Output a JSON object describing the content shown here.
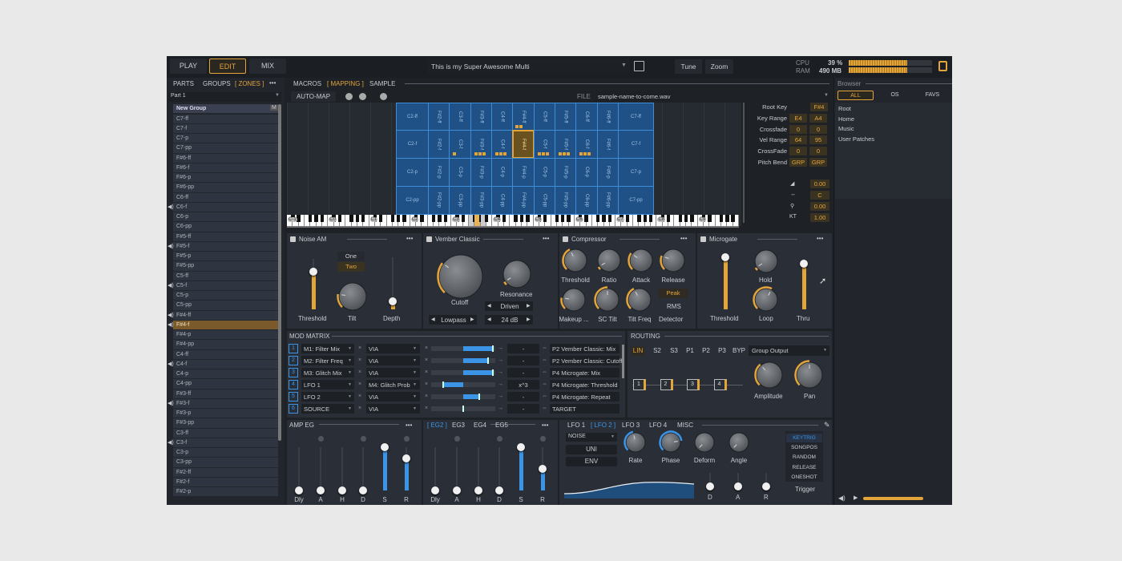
{
  "colors": {
    "accent": "#e3a43a",
    "blue": "#3b94e6",
    "zone": "#1f5186"
  },
  "topbar": {
    "tabs": [
      {
        "label": "PLAY"
      },
      {
        "label": "EDIT",
        "active": true
      },
      {
        "label": "MIX"
      }
    ],
    "preset": "This is my Super Awesome Multi",
    "save_icon": "floppy-disk-icon",
    "tune": "Tune",
    "zoom": "Zoom",
    "cpu_label": "CPU",
    "cpu_value": "39 %",
    "cpu_level": 0.7,
    "ram_label": "RAM",
    "ram_value": "490 MB",
    "ram_level": 0.7
  },
  "left": {
    "tabs": [
      "PARTS",
      "GROUPS",
      "[ ZONES ]"
    ],
    "more": "•••",
    "part": "Part 1",
    "group": "New Group",
    "group_badge": "M",
    "zones": [
      {
        "name": "C7-ff"
      },
      {
        "name": "C7-f"
      },
      {
        "name": "C7-p"
      },
      {
        "name": "C7-pp"
      },
      {
        "name": "F#6-ff"
      },
      {
        "name": "F#6-f"
      },
      {
        "name": "F#6-p"
      },
      {
        "name": "F#6-pp"
      },
      {
        "name": "C6-ff"
      },
      {
        "name": "C6-f",
        "speaker": true
      },
      {
        "name": "C6-p"
      },
      {
        "name": "C6-pp"
      },
      {
        "name": "F#5-ff"
      },
      {
        "name": "F#5-f",
        "speaker": true
      },
      {
        "name": "F#5-p"
      },
      {
        "name": "F#5-pp"
      },
      {
        "name": "C5-ff"
      },
      {
        "name": "C5-f",
        "speaker": true
      },
      {
        "name": "C5-p"
      },
      {
        "name": "C5-pp"
      },
      {
        "name": "F#4-ff",
        "speaker": true
      },
      {
        "name": "F#4-f",
        "speaker": true,
        "selected": true
      },
      {
        "name": "F#4-p"
      },
      {
        "name": "F#4-pp"
      },
      {
        "name": "C4-ff"
      },
      {
        "name": "C4-f",
        "speaker": true
      },
      {
        "name": "C4-p"
      },
      {
        "name": "C4-pp"
      },
      {
        "name": "F#3-ff"
      },
      {
        "name": "F#3-f",
        "speaker": true
      },
      {
        "name": "F#3-p"
      },
      {
        "name": "F#3-pp"
      },
      {
        "name": "C3-ff"
      },
      {
        "name": "C3-f",
        "speaker": true
      },
      {
        "name": "C3-p"
      },
      {
        "name": "C3-pp"
      },
      {
        "name": "F#2-ff"
      },
      {
        "name": "F#2-f"
      },
      {
        "name": "F#2-p"
      }
    ]
  },
  "editor": {
    "tabs": [
      "MACROS",
      "[ MAPPING ]",
      "SAMPLE"
    ],
    "automap": "AUTO-MAP",
    "file_label": "FILE",
    "file": "sample-name-to-come.wav"
  },
  "mapping": {
    "columns": [
      "C2",
      "F#2",
      "C3",
      "F#3",
      "C4",
      "F#4",
      "C5",
      "F#5",
      "C6",
      "F#6",
      "C7"
    ],
    "rows": [
      "ff",
      "f",
      "p",
      "pp"
    ],
    "selected": "F#4-f",
    "octaves": [
      "C-1",
      "C0",
      "C1",
      "C2",
      "C3",
      "C4",
      "C5",
      "C6",
      "C7",
      "C8",
      "C9"
    ]
  },
  "zone_props": {
    "rows": [
      {
        "label": "Root Key",
        "values": [
          "F#4"
        ]
      },
      {
        "label": "Key Range",
        "values": [
          "E4",
          "A4"
        ]
      },
      {
        "label": "Crossfade",
        "values": [
          "0",
          "0"
        ]
      },
      {
        "label": "Vel Range",
        "values": [
          "64",
          "95"
        ]
      },
      {
        "label": "CrossFade",
        "values": [
          "0",
          "0"
        ]
      },
      {
        "label": "Pitch Bend",
        "values": [
          "GRP",
          "GRP"
        ]
      }
    ],
    "params": [
      {
        "icon": "volume-ramp-icon",
        "value": "0.00"
      },
      {
        "icon": "pan-arrows-icon",
        "value": "C"
      },
      {
        "icon": "tuning-fork-icon",
        "value": "0.00"
      },
      {
        "label": "KT",
        "value": "1.00"
      }
    ]
  },
  "browser": {
    "title": "Browser",
    "tabs": [
      "ALL",
      "OS",
      "FAVS"
    ],
    "items": [
      "Root",
      "Home",
      "Music",
      "User Patches"
    ],
    "preview_level": 1.0
  },
  "fx": [
    {
      "title": "Noise AM",
      "options": [
        "One",
        "Two"
      ],
      "selected_option": "Two",
      "controls": [
        {
          "label": "Threshold",
          "value": 0.75
        },
        {
          "label": "Tilt",
          "value": 0.2
        },
        {
          "label": "Depth",
          "value": 0.15
        }
      ]
    },
    {
      "title": "Vember Classic",
      "controls": [
        {
          "label": "Cutoff",
          "value": 0.3
        },
        {
          "label": "Resonance",
          "value": 0.05
        }
      ],
      "filter_type": "Lowpass",
      "drive": "Driven",
      "slope": "24 dB"
    },
    {
      "title": "Compressor",
      "controls": [
        {
          "label": "Threshold",
          "value": 0.4
        },
        {
          "label": "Ratio",
          "value": 0.05
        },
        {
          "label": "Attack",
          "value": 0.3
        },
        {
          "label": "Release",
          "value": 0.25
        },
        {
          "label": "Makeup ...",
          "value": 0.2
        },
        {
          "label": "SC Tilt",
          "value": 0.5
        },
        {
          "label": "Tilt Freq",
          "value": 0.4
        }
      ],
      "detector_options": [
        "Peak",
        "RMS"
      ],
      "detector_selected": "Peak",
      "detector_label": "Detector"
    },
    {
      "title": "Microgate",
      "controls": [
        {
          "label": "Threshold",
          "value": 0.95
        },
        {
          "label": "Hold",
          "value": 0.05
        },
        {
          "label": "Loop",
          "value": 0.6
        },
        {
          "label": "Thru",
          "value": 0.9
        }
      ]
    }
  ],
  "mod_matrix": {
    "title": "MOD MATRIX",
    "rows": [
      {
        "index": "1",
        "source": "M1: Filter Mix",
        "via": "VIA",
        "depth": 0.93,
        "curve": "-",
        "target": "P2 Vember Classic: Mix"
      },
      {
        "index": "2",
        "source": "M2: Filter Freq",
        "via": "VIA",
        "depth": 0.78,
        "curve": "-",
        "target": "P2 Vember Classic: Cutoff"
      },
      {
        "index": "3",
        "source": "M3: Glitch Mix",
        "via": "VIA",
        "depth": 0.93,
        "curve": "-",
        "target": "P4 Microgate: Mix"
      },
      {
        "index": "4",
        "source": "LFO 1",
        "via": "M4: Glitch Prob",
        "depth": -0.63,
        "curve": "x^3",
        "target": "P4 Microgate: Threshold"
      },
      {
        "index": "5",
        "source": "LFO 2",
        "via": "VIA",
        "depth": 0.5,
        "curve": "-",
        "target": "P4 Microgate: Repeat"
      },
      {
        "index": "6",
        "source": "SOURCE",
        "via": "VIA",
        "depth": 0,
        "curve": "-",
        "target": "TARGET"
      }
    ]
  },
  "routing": {
    "title": "ROUTING",
    "modes": [
      "LIN",
      "S2",
      "S3",
      "P1",
      "P2",
      "P3",
      "BYP"
    ],
    "active_mode": "LIN",
    "output": "Group Output",
    "slots": [
      "1",
      "2",
      "3",
      "4"
    ],
    "controls": [
      {
        "label": "Amplitude",
        "value": 0.35
      },
      {
        "label": "Pan",
        "value": 0.5
      }
    ]
  },
  "amp_eg": {
    "title": "AMP EG",
    "more": "•••",
    "sliders": [
      {
        "label": "Dly",
        "value": 0
      },
      {
        "label": "A",
        "value": 0
      },
      {
        "label": "H",
        "value": 0
      },
      {
        "label": "D",
        "value": 0
      },
      {
        "label": "S",
        "value": 1
      },
      {
        "label": "R",
        "value": 0.75
      }
    ]
  },
  "eg2": {
    "tabs": [
      "[ EG2 ]",
      "EG3",
      "EG4",
      "EG5"
    ],
    "more": "•••",
    "sliders": [
      {
        "label": "Dly",
        "value": 0
      },
      {
        "label": "A",
        "value": 0
      },
      {
        "label": "H",
        "value": 0
      },
      {
        "label": "D",
        "value": 0
      },
      {
        "label": "S",
        "value": 1
      },
      {
        "label": "R",
        "value": 0.5
      }
    ]
  },
  "lfo": {
    "tabs": [
      "LFO 1",
      "[ LFO 2 ]",
      "LFO 3",
      "LFO 4",
      "MISC"
    ],
    "shape": "NOISE",
    "uni": "UNI",
    "env": "ENV",
    "knobs": [
      {
        "label": "Rate",
        "value": 0.45
      },
      {
        "label": "Phase",
        "value": 0.8
      },
      {
        "label": "Deform",
        "value": 0.5
      },
      {
        "label": "Angle",
        "value": 0.5
      }
    ],
    "env_sliders": [
      {
        "label": "D",
        "value": 0
      },
      {
        "label": "A",
        "value": 0
      },
      {
        "label": "R",
        "value": 0
      }
    ],
    "triggers": [
      "KEYTRIG",
      "SONGPOS",
      "RANDOM",
      "RELEASE",
      "ONESHOT"
    ],
    "trigger_selected": "KEYTRIG",
    "trigger_label": "Trigger"
  }
}
